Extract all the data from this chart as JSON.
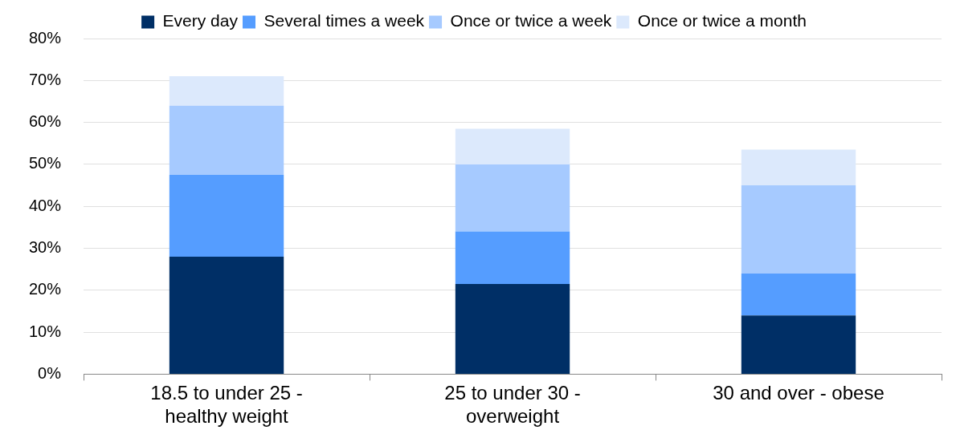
{
  "chart_data": {
    "type": "bar",
    "stacked": true,
    "categories": [
      "18.5 to under 25 - healthy weight",
      "25 to under 30 - overweight",
      "30 and over - obese"
    ],
    "series": [
      {
        "name": "Every day",
        "color": "#002f66",
        "values": [
          28,
          21.5,
          14
        ]
      },
      {
        "name": "Several times a week",
        "color": "#559dff",
        "values": [
          19.5,
          12.5,
          10
        ]
      },
      {
        "name": "Once or twice a week",
        "color": "#a6caff",
        "values": [
          16.5,
          16,
          21
        ]
      },
      {
        "name": "Once or twice a month",
        "color": "#dce9fc",
        "values": [
          7,
          8.5,
          8.5
        ]
      }
    ],
    "ylim": [
      0,
      80
    ],
    "yticks": [
      {
        "value": 0,
        "label": "0%"
      },
      {
        "value": 10,
        "label": "10%"
      },
      {
        "value": 20,
        "label": "20%"
      },
      {
        "value": 30,
        "label": "30%"
      },
      {
        "value": 40,
        "label": "40%"
      },
      {
        "value": 50,
        "label": "50%"
      },
      {
        "value": 60,
        "label": "60%"
      },
      {
        "value": 70,
        "label": "70%"
      },
      {
        "value": 80,
        "label": "80%"
      }
    ],
    "grid": "y",
    "legend": "top"
  }
}
